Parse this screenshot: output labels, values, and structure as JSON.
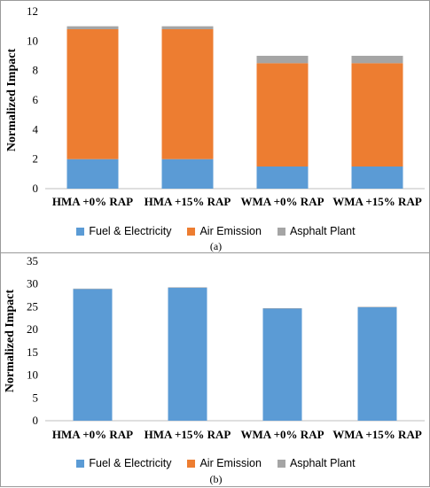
{
  "colors": {
    "fuel": "#5b9bd5",
    "air": "#ed7d31",
    "asphalt": "#a5a5a5"
  },
  "legend": [
    "Fuel & Electricity",
    "Air Emission",
    "Asphalt Plant"
  ],
  "captions": {
    "a": "(a)",
    "b": "(b)"
  },
  "chart_data": [
    {
      "type": "bar",
      "stacked": true,
      "categories": [
        "HMA +0% RAP",
        "HMA +15% RAP",
        "WMA +0% RAP",
        "WMA +15% RAP"
      ],
      "series": [
        {
          "name": "Fuel & Electricity",
          "values": [
            2.0,
            2.0,
            1.5,
            1.5
          ]
        },
        {
          "name": "Air Emission",
          "values": [
            8.8,
            8.8,
            7.0,
            7.0
          ]
        },
        {
          "name": "Asphalt Plant",
          "values": [
            0.2,
            0.2,
            0.5,
            0.5
          ]
        }
      ],
      "ylabel": "Normalized Impact",
      "ylim": [
        0,
        12
      ],
      "yticks": [
        0,
        2,
        4,
        6,
        8,
        10,
        12
      ]
    },
    {
      "type": "bar",
      "stacked": true,
      "categories": [
        "HMA +0% RAP",
        "HMA +15% RAP",
        "WMA +0% RAP",
        "WMA +15% RAP"
      ],
      "series": [
        {
          "name": "Fuel & Electricity",
          "values": [
            28.9,
            29.2,
            24.6,
            24.9
          ]
        },
        {
          "name": "Air Emission",
          "values": [
            0.0,
            0.0,
            0.0,
            0.0
          ]
        },
        {
          "name": "Asphalt Plant",
          "values": [
            0.1,
            0.1,
            0.1,
            0.1
          ]
        }
      ],
      "ylabel": "Normalized Impact",
      "ylim": [
        0,
        35
      ],
      "yticks": [
        0,
        5,
        10,
        15,
        20,
        25,
        30,
        35
      ]
    }
  ]
}
